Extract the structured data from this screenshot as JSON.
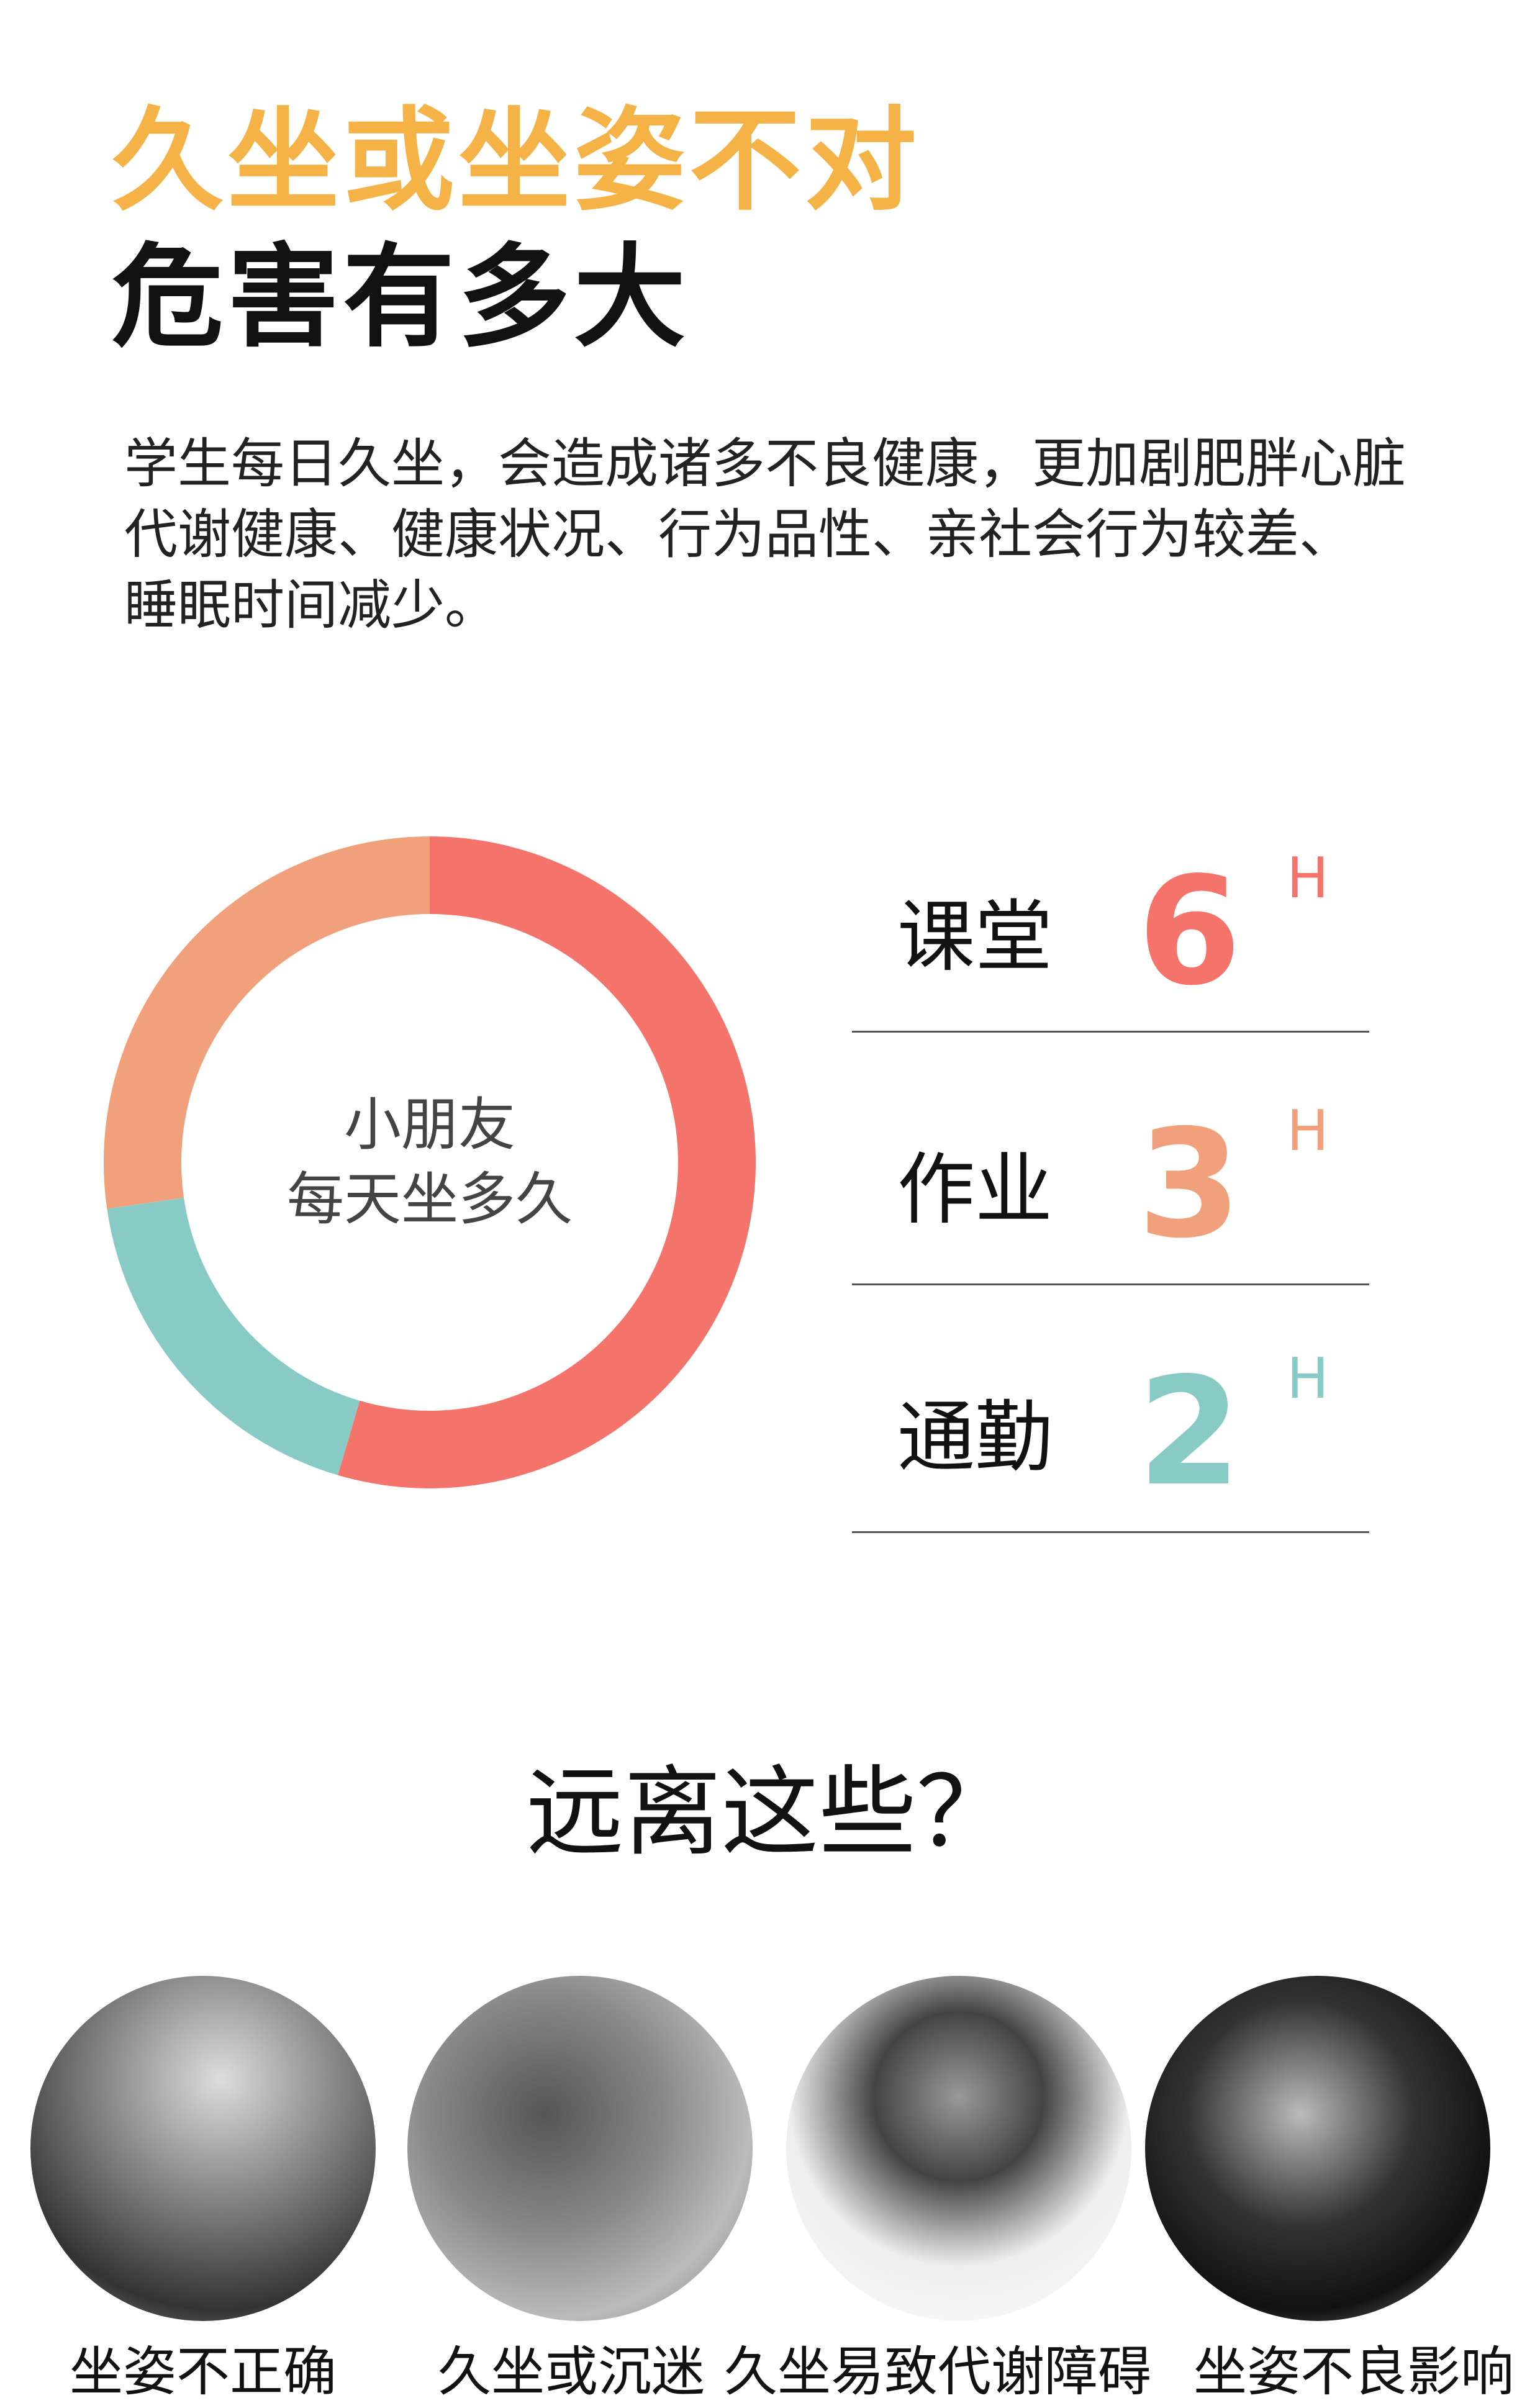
{
  "header": {
    "title_line1": "久坐或坐姿不对",
    "title_line2": "危害有多大"
  },
  "intro": {
    "text_lines": [
      "学生每日久坐，会造成诸多不良健康，更加剧肥胖心脏",
      "代谢健康、健康状况、行为品性、亲社会行为较差、",
      "睡眠时间减少。"
    ]
  },
  "chart_data": {
    "type": "pie",
    "center_label_lines": [
      "小朋友",
      "每天坐多久"
    ],
    "categories": [
      "课堂",
      "通勤",
      "作业"
    ],
    "values": [
      6,
      2,
      3
    ],
    "unit": "H",
    "colors": [
      "#F4736A",
      "#88CBC6",
      "#F0A07A"
    ]
  },
  "stats": [
    {
      "label": "课堂",
      "value": "6",
      "unit": "H",
      "color": "#F4736A"
    },
    {
      "label": "作业",
      "value": "3",
      "unit": "H",
      "color": "#F0A07A"
    },
    {
      "label": "通勤",
      "value": "2",
      "unit": "H",
      "color": "#88CBC6"
    }
  ],
  "section2": {
    "title": "远离这些？",
    "items": [
      {
        "caption": "坐姿不正确"
      },
      {
        "caption": "久坐或沉迷"
      },
      {
        "caption": "久坐易致代谢障碍"
      },
      {
        "caption": "坐姿不良影响"
      }
    ]
  },
  "colors": {
    "title_accent": "#F5B347"
  }
}
